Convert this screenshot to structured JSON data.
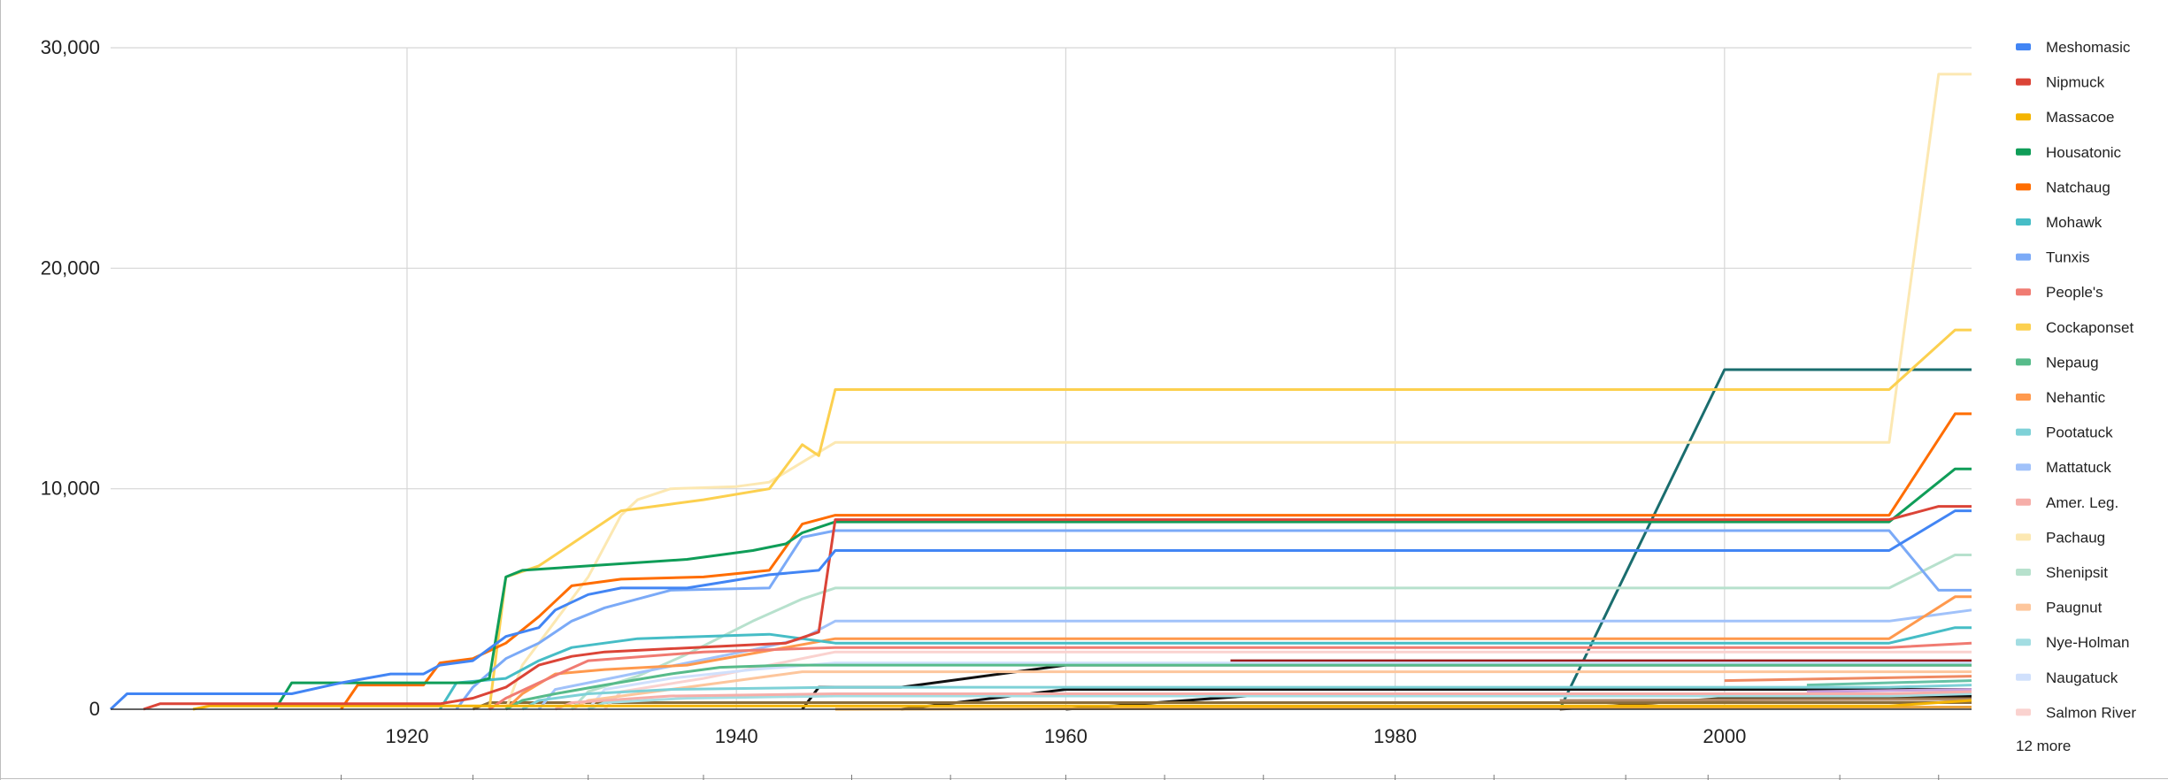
{
  "chart_data": {
    "type": "line",
    "title": "",
    "xlabel": "",
    "ylabel": "",
    "xlim": [
      1902,
      2015
    ],
    "ylim": [
      0,
      30000
    ],
    "x_ticks": [
      1920,
      1940,
      1960,
      1980,
      2000
    ],
    "x_tick_labels": [
      "1920",
      "1940",
      "1960",
      "1980",
      "2000"
    ],
    "y_ticks": [
      0,
      10000,
      20000,
      30000
    ],
    "y_tick_labels": [
      "0",
      "10,000",
      "20,000",
      "30,000"
    ],
    "grid": true,
    "legend_position": "right",
    "legend_more_label": "12 more",
    "series": [
      {
        "name": "Meshomasic",
        "color": "#4285f4",
        "points": [
          [
            1902,
            0
          ],
          [
            1903,
            700
          ],
          [
            1913,
            700
          ],
          [
            1916,
            1200
          ],
          [
            1919,
            1600
          ],
          [
            1921,
            1600
          ],
          [
            1922,
            2000
          ],
          [
            1924,
            2200
          ],
          [
            1926,
            3300
          ],
          [
            1928,
            3700
          ],
          [
            1929,
            4500
          ],
          [
            1931,
            5200
          ],
          [
            1933,
            5500
          ],
          [
            1937,
            5500
          ],
          [
            1942,
            6100
          ],
          [
            1945,
            6300
          ],
          [
            1946,
            7200
          ],
          [
            2010,
            7200
          ],
          [
            2014,
            9000
          ],
          [
            2015,
            9000
          ]
        ]
      },
      {
        "name": "Nipmuck",
        "color": "#db4437",
        "points": [
          [
            1904,
            0
          ],
          [
            1905,
            250
          ],
          [
            1922,
            250
          ],
          [
            1924,
            500
          ],
          [
            1926,
            1000
          ],
          [
            1928,
            2000
          ],
          [
            1930,
            2400
          ],
          [
            1932,
            2600
          ],
          [
            1943,
            3000
          ],
          [
            1945,
            3500
          ],
          [
            1946,
            8600
          ],
          [
            2010,
            8600
          ],
          [
            2013,
            9200
          ],
          [
            2015,
            9200
          ]
        ]
      },
      {
        "name": "Massacoe",
        "color": "#f4b400",
        "points": [
          [
            1907,
            0
          ],
          [
            1908,
            150
          ],
          [
            2010,
            150
          ],
          [
            2015,
            400
          ]
        ]
      },
      {
        "name": "Housatonic",
        "color": "#0f9d58",
        "points": [
          [
            1912,
            0
          ],
          [
            1913,
            1200
          ],
          [
            1924,
            1200
          ],
          [
            1925,
            1400
          ],
          [
            1926,
            6000
          ],
          [
            1927,
            6300
          ],
          [
            1931,
            6500
          ],
          [
            1937,
            6800
          ],
          [
            1941,
            7200
          ],
          [
            1943,
            7500
          ],
          [
            1944,
            8000
          ],
          [
            1946,
            8500
          ],
          [
            2010,
            8500
          ],
          [
            2014,
            10900
          ],
          [
            2015,
            10900
          ]
        ]
      },
      {
        "name": "Natchaug",
        "color": "#ff6d01",
        "points": [
          [
            1916,
            0
          ],
          [
            1917,
            1100
          ],
          [
            1921,
            1100
          ],
          [
            1922,
            2100
          ],
          [
            1924,
            2300
          ],
          [
            1926,
            3000
          ],
          [
            1928,
            4200
          ],
          [
            1930,
            5600
          ],
          [
            1933,
            5900
          ],
          [
            1938,
            6000
          ],
          [
            1942,
            6300
          ],
          [
            1944,
            8400
          ],
          [
            1946,
            8800
          ],
          [
            2010,
            8800
          ],
          [
            2014,
            13400
          ],
          [
            2015,
            13400
          ]
        ]
      },
      {
        "name": "Mohawk",
        "color": "#46bdc6",
        "points": [
          [
            1922,
            0
          ],
          [
            1923,
            1200
          ],
          [
            1926,
            1400
          ],
          [
            1928,
            2200
          ],
          [
            1930,
            2800
          ],
          [
            1934,
            3200
          ],
          [
            1942,
            3400
          ],
          [
            1946,
            3000
          ],
          [
            2010,
            3000
          ],
          [
            2014,
            3700
          ],
          [
            2015,
            3700
          ]
        ]
      },
      {
        "name": "Tunxis",
        "color": "#7baaf7",
        "points": [
          [
            1923,
            0
          ],
          [
            1924,
            1000
          ],
          [
            1926,
            2300
          ],
          [
            1928,
            3000
          ],
          [
            1930,
            4000
          ],
          [
            1932,
            4600
          ],
          [
            1936,
            5400
          ],
          [
            1942,
            5500
          ],
          [
            1944,
            7800
          ],
          [
            1946,
            8100
          ],
          [
            2010,
            8100
          ],
          [
            2013,
            5400
          ],
          [
            2015,
            5400
          ]
        ]
      },
      {
        "name": "People's",
        "color": "#f07b72",
        "points": [
          [
            1925,
            0
          ],
          [
            1926,
            500
          ],
          [
            1928,
            1200
          ],
          [
            1931,
            2200
          ],
          [
            1938,
            2600
          ],
          [
            1946,
            2800
          ],
          [
            2010,
            2800
          ],
          [
            2015,
            3000
          ]
        ]
      },
      {
        "name": "Cockaponset",
        "color": "#fcd04f",
        "points": [
          [
            1925,
            0
          ],
          [
            1926,
            6000
          ],
          [
            1928,
            6500
          ],
          [
            1929,
            7000
          ],
          [
            1931,
            8000
          ],
          [
            1933,
            9000
          ],
          [
            1936,
            9300
          ],
          [
            1938,
            9500
          ],
          [
            1942,
            10000
          ],
          [
            1944,
            12000
          ],
          [
            1945,
            11500
          ],
          [
            1946,
            14500
          ],
          [
            2010,
            14500
          ],
          [
            2014,
            17200
          ],
          [
            2015,
            17200
          ]
        ]
      },
      {
        "name": "Nepaug",
        "color": "#57bb8a",
        "points": [
          [
            1926,
            0
          ],
          [
            1927,
            400
          ],
          [
            1929,
            700
          ],
          [
            1932,
            1100
          ],
          [
            1936,
            1600
          ],
          [
            1939,
            1900
          ],
          [
            1943,
            2000
          ],
          [
            1946,
            2000
          ],
          [
            2010,
            2000
          ],
          [
            2015,
            2000
          ]
        ]
      },
      {
        "name": "Nehantic",
        "color": "#ff994d",
        "points": [
          [
            1926,
            0
          ],
          [
            1927,
            700
          ],
          [
            1929,
            1600
          ],
          [
            1932,
            1800
          ],
          [
            1937,
            2000
          ],
          [
            1946,
            3200
          ],
          [
            2010,
            3200
          ],
          [
            2014,
            5100
          ],
          [
            2015,
            5100
          ]
        ]
      },
      {
        "name": "Pootatuck",
        "color": "#7ed1d7",
        "points": [
          [
            1927,
            0
          ],
          [
            1928,
            400
          ],
          [
            1931,
            700
          ],
          [
            1936,
            900
          ],
          [
            1946,
            1000
          ],
          [
            2010,
            1000
          ],
          [
            2015,
            1100
          ]
        ]
      },
      {
        "name": "Mattatuck",
        "color": "#a1c2fa",
        "points": [
          [
            1928,
            0
          ],
          [
            1929,
            900
          ],
          [
            1933,
            1500
          ],
          [
            1937,
            2100
          ],
          [
            1941,
            2700
          ],
          [
            1944,
            3200
          ],
          [
            1946,
            4000
          ],
          [
            2010,
            4000
          ],
          [
            2015,
            4500
          ]
        ]
      },
      {
        "name": "Amer. Leg.",
        "color": "#f6aea9",
        "points": [
          [
            1929,
            0
          ],
          [
            1930,
            300
          ],
          [
            1936,
            600
          ],
          [
            1946,
            700
          ],
          [
            2010,
            700
          ],
          [
            2015,
            800
          ]
        ]
      },
      {
        "name": "Pachaug",
        "color": "#fce8b2",
        "points": [
          [
            1926,
            0
          ],
          [
            1927,
            2000
          ],
          [
            1929,
            4000
          ],
          [
            1931,
            6000
          ],
          [
            1933,
            8800
          ],
          [
            1934,
            9500
          ],
          [
            1936,
            10000
          ],
          [
            1940,
            10100
          ],
          [
            1942,
            10300
          ],
          [
            1944,
            11200
          ],
          [
            1946,
            12100
          ],
          [
            2010,
            12100
          ],
          [
            2013,
            28800
          ],
          [
            2015,
            28800
          ]
        ]
      },
      {
        "name": "Shenipsit",
        "color": "#b7e1cd",
        "points": [
          [
            1930,
            0
          ],
          [
            1931,
            800
          ],
          [
            1934,
            1500
          ],
          [
            1937,
            2500
          ],
          [
            1941,
            4000
          ],
          [
            1944,
            5000
          ],
          [
            1946,
            5500
          ],
          [
            2010,
            5500
          ],
          [
            2014,
            7000
          ],
          [
            2015,
            7000
          ]
        ]
      },
      {
        "name": "Paugnut",
        "color": "#fdc69c",
        "points": [
          [
            1930,
            0
          ],
          [
            1931,
            400
          ],
          [
            1935,
            800
          ],
          [
            1940,
            1300
          ],
          [
            1944,
            1700
          ],
          [
            1946,
            1700
          ],
          [
            2010,
            1700
          ],
          [
            2015,
            1700
          ]
        ]
      },
      {
        "name": "Nye-Holman",
        "color": "#a3dde2",
        "points": [
          [
            1931,
            0
          ],
          [
            1932,
            300
          ],
          [
            1937,
            500
          ],
          [
            1946,
            600
          ],
          [
            2010,
            600
          ],
          [
            2015,
            700
          ]
        ]
      },
      {
        "name": "Naugatuck",
        "color": "#d0e0fc",
        "points": [
          [
            1931,
            0
          ],
          [
            1932,
            900
          ],
          [
            1936,
            1400
          ],
          [
            1941,
            1800
          ],
          [
            1946,
            2100
          ],
          [
            2010,
            2100
          ],
          [
            2015,
            2100
          ]
        ]
      },
      {
        "name": "Salmon River",
        "color": "#fad2cf",
        "points": [
          [
            1932,
            0
          ],
          [
            1933,
            800
          ],
          [
            1938,
            1400
          ],
          [
            1942,
            2000
          ],
          [
            1946,
            2600
          ],
          [
            2010,
            2600
          ],
          [
            2015,
            2600
          ]
        ]
      }
    ],
    "extra_series": [
      {
        "color": "#1a6d6e",
        "points": [
          [
            1990,
            0
          ],
          [
            2000,
            15400
          ],
          [
            2015,
            15400
          ]
        ]
      },
      {
        "color": "#111111",
        "points": [
          [
            1944,
            0
          ],
          [
            1945,
            1000
          ],
          [
            1950,
            1000
          ],
          [
            1960,
            2000
          ],
          [
            2010,
            2000
          ],
          [
            2015,
            2000
          ]
        ]
      },
      {
        "color": "#111111",
        "points": [
          [
            1950,
            0
          ],
          [
            1960,
            900
          ],
          [
            2010,
            900
          ],
          [
            2015,
            900
          ]
        ]
      },
      {
        "color": "#9e1b1b",
        "points": [
          [
            1970,
            2200
          ],
          [
            2015,
            2200
          ]
        ]
      },
      {
        "color": "#111111",
        "points": [
          [
            1960,
            0
          ],
          [
            1971,
            600
          ],
          [
            2015,
            600
          ]
        ]
      },
      {
        "color": "#5a3e1b",
        "points": [
          [
            1990,
            0
          ],
          [
            2000,
            500
          ],
          [
            2015,
            500
          ]
        ]
      },
      {
        "color": "#e8a33d",
        "points": [
          [
            1946,
            0
          ],
          [
            2015,
            100
          ]
        ]
      },
      {
        "color": "#8a6d3b",
        "points": [
          [
            1924,
            0
          ],
          [
            1925,
            300
          ],
          [
            2015,
            300
          ]
        ]
      },
      {
        "color": "#ef8a62",
        "points": [
          [
            2000,
            1300
          ],
          [
            2015,
            1500
          ]
        ]
      },
      {
        "color": "#66c2a5",
        "points": [
          [
            2005,
            1100
          ],
          [
            2015,
            1300
          ]
        ]
      },
      {
        "color": "#c9a0dc",
        "points": [
          [
            2005,
            800
          ],
          [
            2015,
            900
          ]
        ]
      },
      {
        "color": "#b08968",
        "points": [
          [
            1990,
            400
          ],
          [
            2015,
            450
          ]
        ]
      }
    ]
  }
}
